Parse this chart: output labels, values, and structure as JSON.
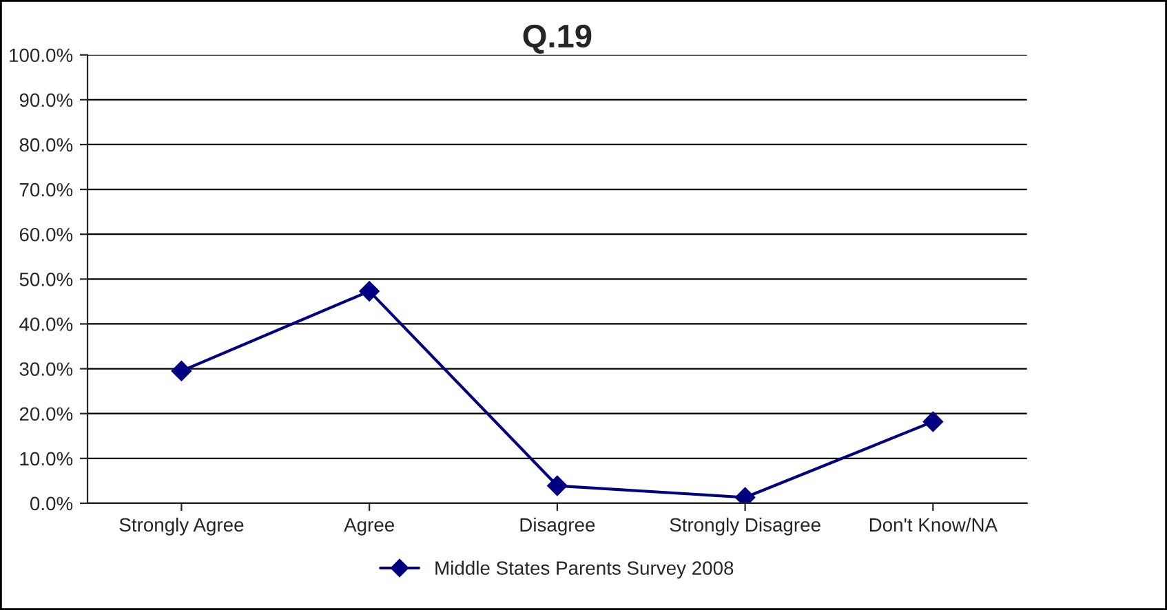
{
  "chart_data": {
    "type": "line",
    "title": "Q.19",
    "categories": [
      "Strongly Agree",
      "Agree",
      "Disagree",
      "Strongly Disagree",
      "Don't Know/NA"
    ],
    "series": [
      {
        "name": "Middle States Parents Survey 2008",
        "color": "#000080",
        "values": [
          29.5,
          47.3,
          3.9,
          1.3,
          18.2
        ]
      }
    ],
    "ylim": [
      0,
      100
    ],
    "yticks": [
      {
        "value": 0,
        "label": "0.0%"
      },
      {
        "value": 10,
        "label": "10.0%"
      },
      {
        "value": 20,
        "label": "20.0%"
      },
      {
        "value": 30,
        "label": "30.0%"
      },
      {
        "value": 40,
        "label": "40.0%"
      },
      {
        "value": 50,
        "label": "50.0%"
      },
      {
        "value": 60,
        "label": "60.0%"
      },
      {
        "value": 70,
        "label": "70.0%"
      },
      {
        "value": 80,
        "label": "80.0%"
      },
      {
        "value": 90,
        "label": "90.0%"
      },
      {
        "value": 100,
        "label": "100.0%"
      }
    ],
    "grid": "y",
    "legend": "bottom",
    "marker": "diamond",
    "line_style": "solid"
  }
}
